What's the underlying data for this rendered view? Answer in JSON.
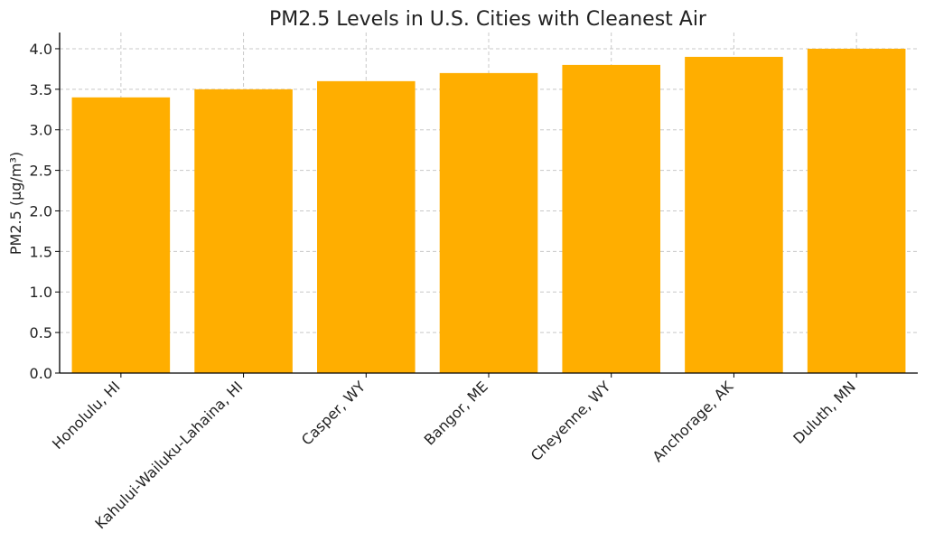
{
  "chart_data": {
    "type": "bar",
    "title": "PM2.5 Levels in U.S. Cities with Cleanest Air",
    "xlabel": "",
    "ylabel": "PM2.5 (µg/m³)",
    "categories": [
      "Honolulu, HI",
      "Kahului-Wailuku-Lahaina, HI",
      "Casper, WY",
      "Bangor, ME",
      "Cheyenne, WY",
      "Anchorage, AK",
      "Duluth, MN"
    ],
    "values": [
      3.4,
      3.5,
      3.6,
      3.7,
      3.8,
      3.9,
      4.0
    ],
    "ylim": [
      0,
      4.2
    ],
    "yticks": [
      "0.0",
      "0.5",
      "1.0",
      "1.5",
      "2.0",
      "2.5",
      "3.0",
      "3.5",
      "4.0"
    ],
    "grid": true,
    "bar_color": "#FFAE00"
  }
}
